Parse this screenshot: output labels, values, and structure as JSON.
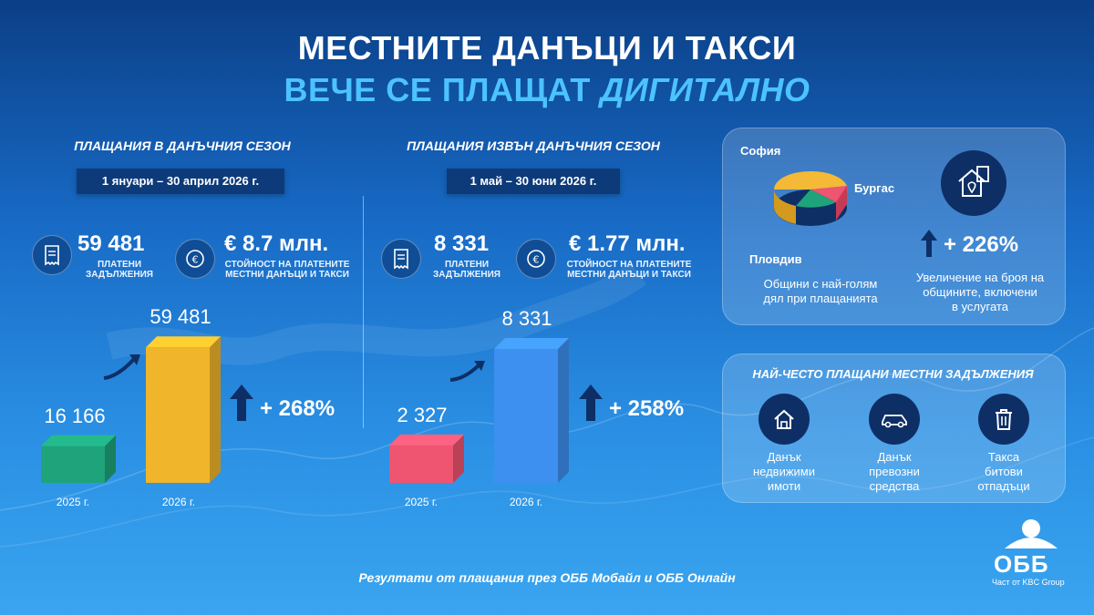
{
  "title": {
    "line1": "МЕСТНИТЕ ДАНЪЦИ И ТАКСИ",
    "line2_a": "ВЕЧЕ СЕ ПЛАЩАТ ",
    "line2_b": "ДИГИТАЛНО"
  },
  "left_section": {
    "title": "ПЛАЩАНИЯ В ДАНЪЧНИЯ СЕЗОН",
    "period": "1 януари – 30 април 2026 г.",
    "payments_count": "59 481",
    "payments_label_1": "ПЛАТЕНИ",
    "payments_label_2": "ЗАДЪЛЖЕНИЯ",
    "amount": "€ 8.7 млн.",
    "amount_label_1": "СТОЙНОСТ НА ПЛАТЕНИТЕ",
    "amount_label_2": "МЕСТНИ ДАНЪЦИ И ТАКСИ",
    "growth": "+ 268%"
  },
  "right_section": {
    "title": "ПЛАЩАНИЯ ИЗВЪН ДАНЪЧНИЯ СЕЗОН",
    "period": "1 май – 30 юни 2026 г.",
    "payments_count": "8 331",
    "payments_label_1": "ПЛАТЕНИ",
    "payments_label_2": "ЗАДЪЛЖЕНИЯ",
    "amount": "€ 1.77 млн.",
    "amount_label_1": "СТОЙНОСТ НА ПЛАТЕНИТЕ",
    "amount_label_2": "МЕСТНИ ДАНЪЦИ И ТАКСИ",
    "growth": "+ 258%"
  },
  "chart_data": [
    {
      "type": "bar",
      "categories": [
        "2025 г.",
        "2026 г."
      ],
      "values": [
        16166,
        59481
      ],
      "value_labels": [
        "16 166",
        "59 481"
      ],
      "colors": [
        "#1fa37a",
        "#f0b52a"
      ],
      "ylim": [
        0,
        60000
      ]
    },
    {
      "type": "bar",
      "categories": [
        "2025 г.",
        "2026 г."
      ],
      "values": [
        2327,
        8331
      ],
      "value_labels": [
        "2 327",
        "8 331"
      ],
      "colors": [
        "#ef5470",
        "#3d8ff0"
      ],
      "ylim": [
        0,
        8500
      ]
    }
  ],
  "cities_card": {
    "labels": [
      "София",
      "Бургас",
      "Пловдив"
    ],
    "caption_1": "Общини с най-голям",
    "caption_2": "дял при плащанията",
    "growth": "+ 226%",
    "growth_caption_1": "Увеличение на броя на",
    "growth_caption_2": "общините, включени",
    "growth_caption_3": "в услугата"
  },
  "frequent_card": {
    "title": "НАЙ-ЧЕСТО ПЛАЩАНИ МЕСТНИ ЗАДЪЛЖЕНИЯ",
    "items": [
      {
        "line1": "Данък",
        "line2": "недвижими",
        "line3": "имоти",
        "icon": "house-icon"
      },
      {
        "line1": "Данък",
        "line2": "превозни",
        "line3": "средства",
        "icon": "car-icon"
      },
      {
        "line1": "Такса",
        "line2": "битови",
        "line3": "отпадъци",
        "icon": "trash-icon"
      }
    ]
  },
  "footer": "Резултати от плащания през ОББ Мобайл и ОББ Онлайн",
  "logo": {
    "name": "ОББ",
    "sub": "Част от KBC Group"
  }
}
